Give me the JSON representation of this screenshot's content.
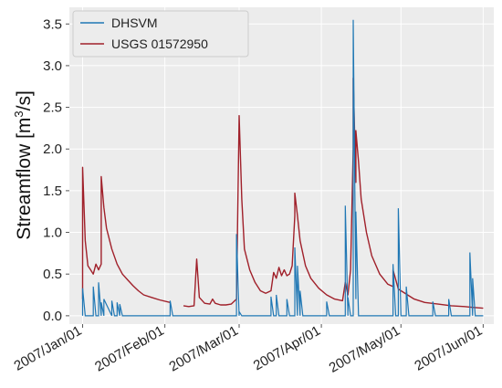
{
  "chart_data": {
    "type": "line",
    "title": "",
    "xlabel": "",
    "ylabel": "Streamflow [m³/s]",
    "ylabel_main": "Streamflow [m",
    "ylabel_sup": "3",
    "ylabel_end": "/s]",
    "ylim": [
      -0.1,
      3.7
    ],
    "xlim": [
      "2006-12-27",
      "2007-06-05"
    ],
    "yticks": [
      0.0,
      0.5,
      1.0,
      1.5,
      2.0,
      2.5,
      3.0,
      3.5
    ],
    "ytick_labels": [
      "0.0",
      "0.5",
      "1.0",
      "1.5",
      "2.0",
      "2.5",
      "3.0",
      "3.5"
    ],
    "xticks": [
      "2007-01-01",
      "2007-02-01",
      "2007-03-01",
      "2007-04-01",
      "2007-05-01",
      "2007-06-01"
    ],
    "xtick_labels": [
      "2007/Jan/01",
      "2007/Feb/01",
      "2007/Mar/01",
      "2007/Apr/01",
      "2007/May/01",
      "2007/Jun/01"
    ],
    "grid": true,
    "legend": "top-left",
    "series": [
      {
        "name": "DHSVM",
        "color": "#1f77b4",
        "x": [
          "2007-01-01",
          "2007-01-01",
          "2007-01-02",
          "2007-01-05",
          "2007-01-05",
          "2007-01-06",
          "2007-01-07",
          "2007-01-07",
          "2007-01-08",
          "2007-01-08",
          "2007-01-09",
          "2007-01-09",
          "2007-01-12",
          "2007-01-12",
          "2007-01-13",
          "2007-01-14",
          "2007-01-14",
          "2007-01-15",
          "2007-01-15",
          "2007-01-16",
          "2007-01-16",
          "2007-02-03",
          "2007-02-03",
          "2007-02-04",
          "2007-02-28",
          "2007-02-28",
          "2007-03-01",
          "2007-03-01",
          "2007-03-02",
          "2007-03-13",
          "2007-03-13",
          "2007-03-14",
          "2007-03-15",
          "2007-03-15",
          "2007-03-16",
          "2007-03-19",
          "2007-03-19",
          "2007-03-20",
          "2007-03-22",
          "2007-03-22",
          "2007-03-23",
          "2007-03-23",
          "2007-03-24",
          "2007-03-24",
          "2007-03-25",
          "2007-04-03",
          "2007-04-03",
          "2007-04-04",
          "2007-04-10",
          "2007-04-10",
          "2007-04-11",
          "2007-04-11",
          "2007-04-12",
          "2007-04-13",
          "2007-04-13",
          "2007-04-14",
          "2007-04-14",
          "2007-04-15",
          "2007-04-28",
          "2007-04-28",
          "2007-04-29",
          "2007-04-30",
          "2007-04-30",
          "2007-05-01",
          "2007-05-03",
          "2007-05-03",
          "2007-05-04",
          "2007-05-13",
          "2007-05-13",
          "2007-05-14",
          "2007-05-19",
          "2007-05-19",
          "2007-05-20",
          "2007-05-27",
          "2007-05-27",
          "2007-05-28",
          "2007-05-28",
          "2007-05-29",
          "2007-06-01"
        ],
        "values": [
          0,
          0.33,
          0,
          0,
          0.35,
          0,
          0,
          0.4,
          0,
          0.16,
          0,
          0.2,
          0,
          0.18,
          0,
          0,
          0.16,
          0,
          0.14,
          0,
          0,
          0,
          0.18,
          0,
          0,
          0.98,
          0,
          0.05,
          0,
          0,
          0.23,
          0,
          0,
          0.25,
          0,
          0,
          0.2,
          0,
          0,
          0.82,
          0,
          0.6,
          0,
          0.3,
          0,
          0,
          0.17,
          0,
          0,
          1.32,
          0,
          0.22,
          0,
          0,
          3.55,
          0.2,
          1.25,
          0,
          0,
          0.62,
          0,
          0,
          1.29,
          0,
          0,
          0.35,
          0,
          0,
          0.17,
          0,
          0,
          0.2,
          0,
          0,
          0.76,
          0,
          0.45,
          0,
          0
        ]
      },
      {
        "name": "USGS 01572950",
        "color": "#a0202a",
        "segments": [
          {
            "x": [
              "2007-01-01",
              "2007-01-01",
              "2007-01-02",
              "2007-01-03",
              "2007-01-04",
              "2007-01-05",
              "2007-01-06",
              "2007-01-07",
              "2007-01-08",
              "2007-01-08",
              "2007-01-09",
              "2007-01-10",
              "2007-01-12",
              "2007-01-14",
              "2007-01-16",
              "2007-01-18",
              "2007-01-20",
              "2007-01-22",
              "2007-01-24",
              "2007-01-27",
              "2007-01-30",
              "2007-02-03"
            ],
            "values": [
              0.2,
              1.78,
              0.9,
              0.6,
              0.55,
              0.5,
              0.62,
              0.55,
              0.62,
              1.67,
              1.3,
              1.05,
              0.8,
              0.62,
              0.5,
              0.43,
              0.36,
              0.3,
              0.25,
              0.22,
              0.19,
              0.16
            ]
          },
          {
            "x": [
              "2007-02-08",
              "2007-02-10",
              "2007-02-12",
              "2007-02-13",
              "2007-02-14",
              "2007-02-16",
              "2007-02-18",
              "2007-02-19",
              "2007-02-20",
              "2007-02-22",
              "2007-02-24",
              "2007-02-26",
              "2007-02-28",
              "2007-03-01",
              "2007-03-01",
              "2007-03-02",
              "2007-03-03",
              "2007-03-05",
              "2007-03-07",
              "2007-03-09",
              "2007-03-11",
              "2007-03-13",
              "2007-03-14",
              "2007-03-15",
              "2007-03-16",
              "2007-03-17",
              "2007-03-18",
              "2007-03-19",
              "2007-03-20",
              "2007-03-21",
              "2007-03-22",
              "2007-03-22",
              "2007-03-23",
              "2007-03-24",
              "2007-03-26",
              "2007-03-28",
              "2007-03-31",
              "2007-04-03",
              "2007-04-06",
              "2007-04-09",
              "2007-04-10",
              "2007-04-11",
              "2007-04-12",
              "2007-04-13",
              "2007-04-13",
              "2007-04-14",
              "2007-04-14",
              "2007-04-15",
              "2007-04-16",
              "2007-04-18",
              "2007-04-20",
              "2007-04-23",
              "2007-04-26",
              "2007-04-28",
              "2007-04-28",
              "2007-04-30",
              "2007-05-03",
              "2007-05-06",
              "2007-05-10",
              "2007-05-15",
              "2007-05-20",
              "2007-05-25",
              "2007-05-28",
              "2007-06-01"
            ],
            "values": [
              0.12,
              0.11,
              0.12,
              0.68,
              0.22,
              0.15,
              0.14,
              0.2,
              0.15,
              0.13,
              0.13,
              0.14,
              0.2,
              2.38,
              2.4,
              1.4,
              0.8,
              0.55,
              0.4,
              0.3,
              0.27,
              0.3,
              0.52,
              0.45,
              0.58,
              0.48,
              0.55,
              0.48,
              0.5,
              0.6,
              1.2,
              1.47,
              1.2,
              0.9,
              0.6,
              0.45,
              0.33,
              0.25,
              0.2,
              0.18,
              0.4,
              0.25,
              0.55,
              2.0,
              2.85,
              1.6,
              2.22,
              1.85,
              1.4,
              1.0,
              0.72,
              0.5,
              0.38,
              0.35,
              0.55,
              0.32,
              0.26,
              0.2,
              0.16,
              0.14,
              0.12,
              0.11,
              0.1,
              0.09
            ]
          }
        ]
      }
    ]
  },
  "colors": {
    "plot_background": "#ececec",
    "grid": "#ffffff",
    "dhsvm": "#1f77b4",
    "usgs": "#a0202a"
  }
}
